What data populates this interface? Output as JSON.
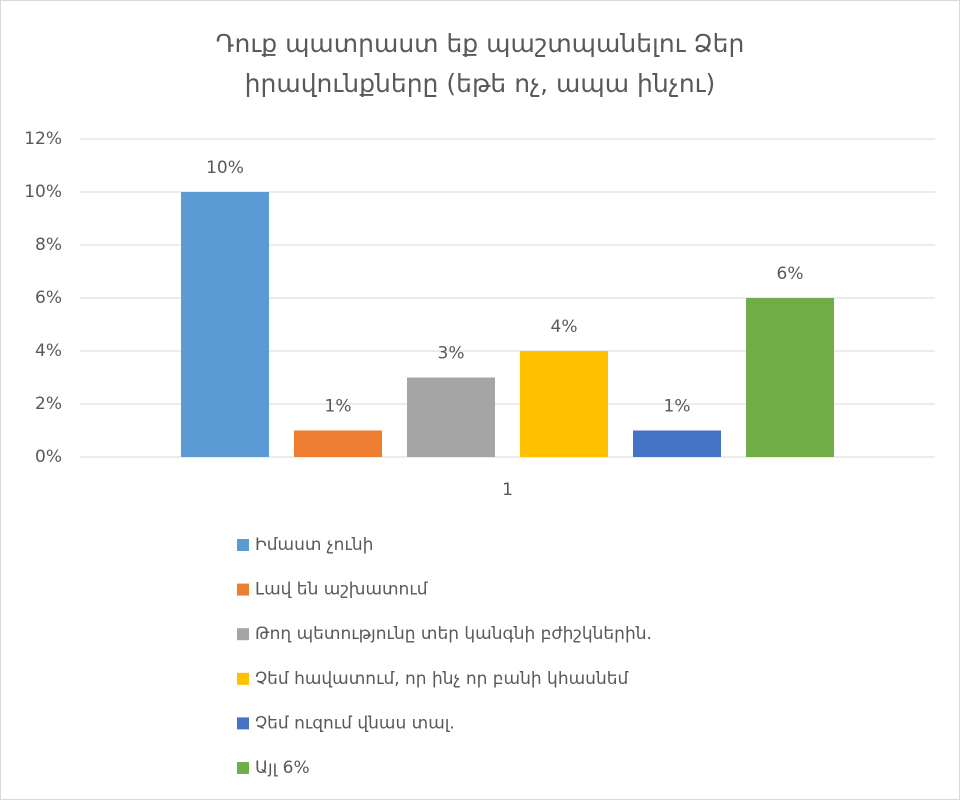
{
  "chart_data": {
    "type": "bar",
    "title": "Դուք պատրաստ եք պաշտպանելու Ձեր իրավունքները (եթե ոչ, ապա ինչու)",
    "categories": [
      "1"
    ],
    "series": [
      {
        "name": "Իմաստ չունի",
        "color": "#5b9bd5",
        "values": [
          10
        ],
        "value_labels": [
          "10%"
        ]
      },
      {
        "name": "Լավ են աշխատում",
        "color": "#ed7d31",
        "values": [
          1
        ],
        "value_labels": [
          "1%"
        ]
      },
      {
        "name": "Թող պետությունը տեր կանգնի բժիշկներին.",
        "color": "#a5a5a5",
        "values": [
          3
        ],
        "value_labels": [
          "3%"
        ]
      },
      {
        "name": "Չեմ հավատում, որ ինչ որ բանի կհասնեմ",
        "color": "#ffc000",
        "values": [
          4
        ],
        "value_labels": [
          "4%"
        ]
      },
      {
        "name": "Չեմ ուզում վնաս տալ.",
        "color": "#4472c4",
        "values": [
          1
        ],
        "value_labels": [
          "1%"
        ]
      },
      {
        "name": "Այլ  6%",
        "color": "#70ad47",
        "values": [
          6
        ],
        "value_labels": [
          "6%"
        ]
      }
    ],
    "ylim": [
      0,
      12
    ],
    "yticks": [
      {
        "value": 0,
        "label": "0%"
      },
      {
        "value": 2,
        "label": "2%"
      },
      {
        "value": 4,
        "label": "4%"
      },
      {
        "value": 6,
        "label": "6%"
      },
      {
        "value": 8,
        "label": "8%"
      },
      {
        "value": 10,
        "label": "10%"
      },
      {
        "value": 12,
        "label": "12%"
      }
    ],
    "grid": true,
    "legend": "bottom"
  }
}
